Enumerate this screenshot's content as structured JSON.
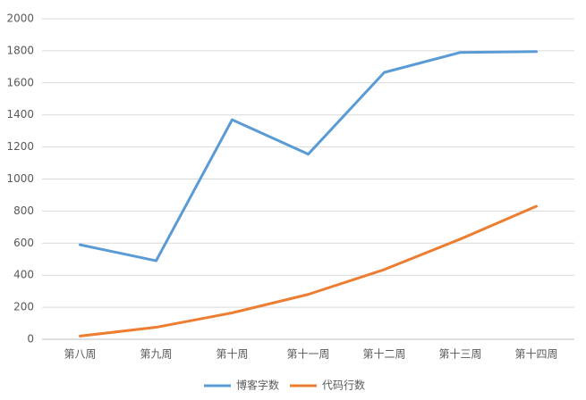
{
  "chart_data": {
    "type": "line",
    "categories": [
      "第八周",
      "第九周",
      "第十周",
      "第十一周",
      "第十二周",
      "第十三周",
      "第十四周"
    ],
    "series": [
      {
        "name": "博客字数",
        "color": "#5b9bd5",
        "values": [
          590,
          490,
          1370,
          1155,
          1665,
          1790,
          1795
        ]
      },
      {
        "name": "代码行数",
        "color": "#ed7d31",
        "values": [
          20,
          75,
          165,
          280,
          435,
          625,
          830
        ]
      }
    ],
    "ylim": [
      0,
      2000
    ],
    "yticks": [
      0,
      200,
      400,
      600,
      800,
      1000,
      1200,
      1400,
      1600,
      1800,
      2000
    ],
    "grid": true,
    "legend": "bottom"
  }
}
